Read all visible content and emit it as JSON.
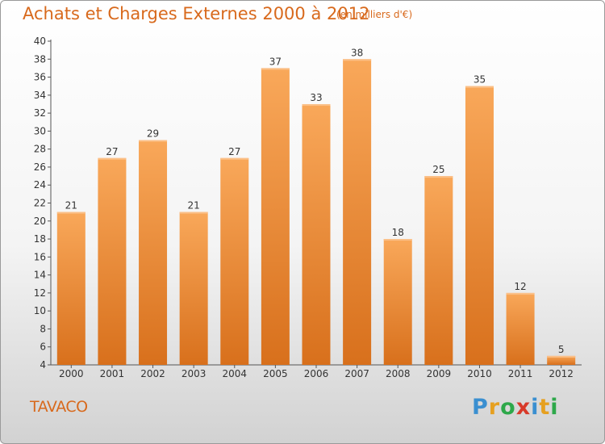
{
  "title": "Achats et Charges Externes 2000 à 2012",
  "unit_label": "(en milliers d'€)",
  "commune": "TAVACO",
  "logo": {
    "letters": [
      "P",
      "r",
      "o",
      "x",
      "i",
      "t",
      "i"
    ],
    "colors": [
      "#3a8fd0",
      "#e6a020",
      "#2da84a",
      "#d83a2a",
      "#3a8fd0",
      "#e6a020",
      "#2da84a"
    ]
  },
  "colors": {
    "bar_top": "#f9a85a",
    "bar_bottom": "#d8701c",
    "accent": "#d8691c"
  },
  "chart_data": {
    "type": "bar",
    "categories": [
      "2000",
      "2001",
      "2002",
      "2003",
      "2004",
      "2005",
      "2006",
      "2007",
      "2008",
      "2009",
      "2010",
      "2011",
      "2012"
    ],
    "values": [
      21,
      27,
      29,
      21,
      27,
      37,
      33,
      38,
      18,
      25,
      35,
      12,
      5
    ],
    "ylim": [
      4,
      40
    ],
    "yticks": [
      4,
      6,
      8,
      10,
      12,
      14,
      16,
      18,
      20,
      22,
      24,
      26,
      28,
      30,
      32,
      34,
      36,
      38,
      40
    ],
    "grid": false
  }
}
